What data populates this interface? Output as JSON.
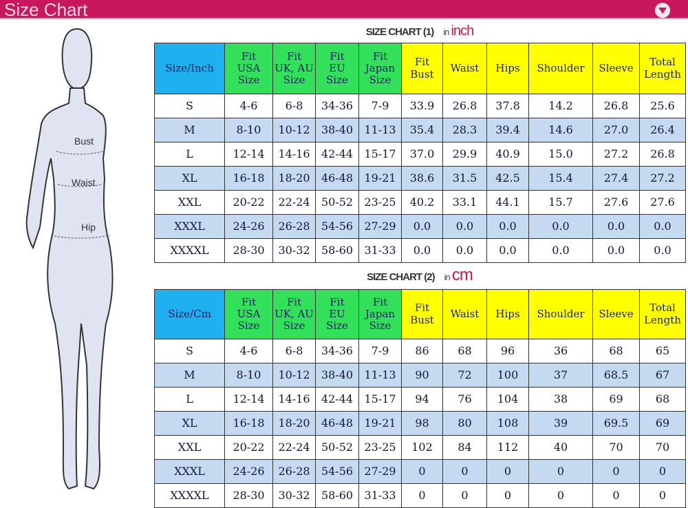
{
  "title": "Size Chart",
  "figure_labels": {
    "bust": "Bust",
    "waist": "Waist",
    "hip": "Hip"
  },
  "colors": {
    "title_bar": "#c8175d",
    "size_header": "#1fb0f0",
    "fit_header": "#33e05a",
    "measure_header": "#ffff00",
    "alt_row": "#c5d9f1"
  },
  "charts": [
    {
      "title": "SIZE CHART (1)",
      "unit_prefix": "in",
      "unit": "inch",
      "headers": [
        [
          "Size/Inch"
        ],
        [
          "Fit",
          "USA",
          "Size"
        ],
        [
          "Fit",
          "UK, AU",
          "Size"
        ],
        [
          "Fit",
          "EU",
          "Size"
        ],
        [
          "Fit",
          "Japan",
          "Size"
        ],
        [
          "Fit",
          "Bust"
        ],
        [
          "Waist"
        ],
        [
          "Hips"
        ],
        [
          "Shoulder"
        ],
        [
          "Sleeve"
        ],
        [
          "Total",
          "Length"
        ]
      ],
      "rows": [
        [
          "S",
          "4-6",
          "6-8",
          "34-36",
          "7-9",
          "33.9",
          "26.8",
          "37.8",
          "14.2",
          "26.8",
          "25.6"
        ],
        [
          "M",
          "8-10",
          "10-12",
          "38-40",
          "11-13",
          "35.4",
          "28.3",
          "39.4",
          "14.6",
          "27.0",
          "26.4"
        ],
        [
          "L",
          "12-14",
          "14-16",
          "42-44",
          "15-17",
          "37.0",
          "29.9",
          "40.9",
          "15.0",
          "27.2",
          "26.8"
        ],
        [
          "XL",
          "16-18",
          "18-20",
          "46-48",
          "19-21",
          "38.6",
          "31.5",
          "42.5",
          "15.4",
          "27.4",
          "27.2"
        ],
        [
          "XXL",
          "20-22",
          "22-24",
          "50-52",
          "23-25",
          "40.2",
          "33.1",
          "44.1",
          "15.7",
          "27.6",
          "27.6"
        ],
        [
          "XXXL",
          "24-26",
          "26-28",
          "54-56",
          "27-29",
          "0.0",
          "0.0",
          "0.0",
          "0.0",
          "0.0",
          "0.0"
        ],
        [
          "XXXXL",
          "28-30",
          "30-32",
          "58-60",
          "31-33",
          "0.0",
          "0.0",
          "0.0",
          "0.0",
          "0.0",
          "0.0"
        ]
      ]
    },
    {
      "title": "SIZE CHART (2)",
      "unit_prefix": "in",
      "unit": "cm",
      "headers": [
        [
          "Size/Cm"
        ],
        [
          "Fit",
          "USA",
          "Size"
        ],
        [
          "Fit",
          "UK, AU",
          "Size"
        ],
        [
          "Fit",
          "EU",
          "Size"
        ],
        [
          "Fit",
          "Japan",
          "Size"
        ],
        [
          "Fit",
          "Bust"
        ],
        [
          "Waist"
        ],
        [
          "Hips"
        ],
        [
          "Shoulder"
        ],
        [
          "Sleeve"
        ],
        [
          "Total",
          "Length"
        ]
      ],
      "rows": [
        [
          "S",
          "4-6",
          "6-8",
          "34-36",
          "7-9",
          "86",
          "68",
          "96",
          "36",
          "68",
          "65"
        ],
        [
          "M",
          "8-10",
          "10-12",
          "38-40",
          "11-13",
          "90",
          "72",
          "100",
          "37",
          "68.5",
          "67"
        ],
        [
          "L",
          "12-14",
          "14-16",
          "42-44",
          "15-17",
          "94",
          "76",
          "104",
          "38",
          "69",
          "68"
        ],
        [
          "XL",
          "16-18",
          "18-20",
          "46-48",
          "19-21",
          "98",
          "80",
          "108",
          "39",
          "69.5",
          "69"
        ],
        [
          "XXL",
          "20-22",
          "22-24",
          "50-52",
          "23-25",
          "102",
          "84",
          "112",
          "40",
          "70",
          "70"
        ],
        [
          "XXXL",
          "24-26",
          "26-28",
          "54-56",
          "27-29",
          "0",
          "0",
          "0",
          "0",
          "0",
          "0"
        ],
        [
          "XXXXL",
          "28-30",
          "30-32",
          "58-60",
          "31-33",
          "0",
          "0",
          "0",
          "0",
          "0",
          "0"
        ]
      ]
    }
  ]
}
